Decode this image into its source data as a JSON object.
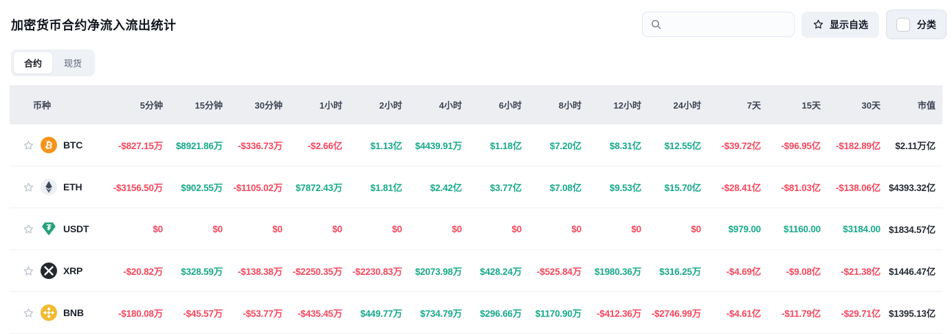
{
  "page": {
    "title": "加密货币合约净流入流出统计"
  },
  "header": {
    "search_placeholder": "",
    "search_value": "",
    "show_favorites_label": "显示自选",
    "category_label": "分类",
    "category_checked": false
  },
  "tabs": [
    {
      "id": "contracts",
      "label": "合约",
      "active": true
    },
    {
      "id": "spot",
      "label": "现货",
      "active": false
    }
  ],
  "colors": {
    "positive": "#17a98a",
    "negative": "#f5475d",
    "market_cap_text": "#262b35",
    "header_bg": "#eceef2",
    "star": "#bcc2cc"
  },
  "table": {
    "columns": [
      "币种",
      "5分钟",
      "15分钟",
      "30分钟",
      "1小时",
      "2小时",
      "4小时",
      "6小时",
      "8小时",
      "12小时",
      "24小时",
      "7天",
      "15天",
      "30天",
      "市值"
    ],
    "rows": [
      {
        "symbol": "BTC",
        "icon": "btc-icon",
        "icon_color": "#f7931a",
        "favorited": false,
        "values": [
          "-$827.15万",
          "$8921.86万",
          "-$336.73万",
          "-$2.66亿",
          "$1.13亿",
          "$4439.91万",
          "$1.18亿",
          "$7.20亿",
          "$8.31亿",
          "$12.55亿",
          "-$39.72亿",
          "-$96.95亿",
          "-$182.89亿"
        ],
        "market_cap": "$2.11万亿"
      },
      {
        "symbol": "ETH",
        "icon": "eth-icon",
        "icon_color": "#eceff4",
        "favorited": false,
        "values": [
          "-$3156.50万",
          "$902.55万",
          "-$1105.02万",
          "$7872.43万",
          "$1.81亿",
          "$2.42亿",
          "$3.77亿",
          "$7.08亿",
          "$9.53亿",
          "$15.70亿",
          "-$28.41亿",
          "-$81.03亿",
          "-$138.06亿"
        ],
        "market_cap": "$4393.32亿"
      },
      {
        "symbol": "USDT",
        "icon": "usdt-icon",
        "icon_color": "#26a17b",
        "favorited": false,
        "values": [
          "$0",
          "$0",
          "$0",
          "$0",
          "$0",
          "$0",
          "$0",
          "$0",
          "$0",
          "$0",
          "$979.00",
          "$1160.00",
          "$3184.00"
        ],
        "market_cap": "$1834.57亿"
      },
      {
        "symbol": "XRP",
        "icon": "xrp-icon",
        "icon_color": "#23292f",
        "favorited": false,
        "values": [
          "-$20.82万",
          "$328.59万",
          "-$138.38万",
          "-$2250.35万",
          "-$2230.83万",
          "$2073.98万",
          "$428.24万",
          "-$525.84万",
          "$1980.36万",
          "$316.25万",
          "-$4.69亿",
          "-$9.08亿",
          "-$21.38亿"
        ],
        "market_cap": "$1446.47亿"
      },
      {
        "symbol": "BNB",
        "icon": "bnb-icon",
        "icon_color": "#f3ba2f",
        "favorited": false,
        "values": [
          "-$180.08万",
          "-$45.57万",
          "-$53.77万",
          "-$435.45万",
          "$449.77万",
          "$734.79万",
          "$296.66万",
          "$1170.90万",
          "-$412.36万",
          "-$2746.99万",
          "-$4.61亿",
          "-$11.79亿",
          "-$29.71亿"
        ],
        "market_cap": "$1395.13亿"
      }
    ]
  }
}
